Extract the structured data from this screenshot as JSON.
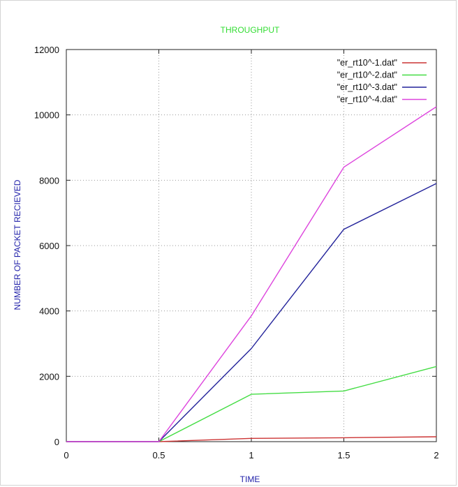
{
  "chart_data": {
    "type": "line",
    "title": "THROUGHPUT",
    "xlabel": "TIME",
    "ylabel": "NUMBER OF PACKET RECIEVED",
    "x": [
      0,
      0.5,
      1,
      1.5,
      2
    ],
    "xlim": [
      0,
      2
    ],
    "ylim": [
      0,
      12000
    ],
    "x_ticks": [
      "0",
      "0.5",
      "1",
      "1.5",
      "2"
    ],
    "y_ticks": [
      "0",
      "2000",
      "4000",
      "6000",
      "8000",
      "10000",
      "12000"
    ],
    "x_tick_values": [
      0,
      0.5,
      1,
      1.5,
      2
    ],
    "y_tick_values": [
      0,
      2000,
      4000,
      6000,
      8000,
      10000,
      12000
    ],
    "grid": true,
    "legend_position": "top-right",
    "title_color": "#33dd33",
    "axis_label_color": "#2222aa",
    "series": [
      {
        "name": "\"er_rt10^-1.dat\"",
        "color": "#cc3333",
        "values": [
          0,
          0,
          100,
          120,
          150
        ]
      },
      {
        "name": "\"er_rt10^-2.dat\"",
        "color": "#44dd44",
        "values": [
          0,
          0,
          1450,
          1550,
          2300
        ]
      },
      {
        "name": "\"er_rt10^-3.dat\"",
        "color": "#22229a",
        "values": [
          0,
          0,
          2850,
          6500,
          7900
        ]
      },
      {
        "name": "\"er_rt10^-4.dat\"",
        "color": "#dd44dd",
        "values": [
          0,
          0,
          3850,
          8400,
          10250
        ]
      }
    ]
  }
}
